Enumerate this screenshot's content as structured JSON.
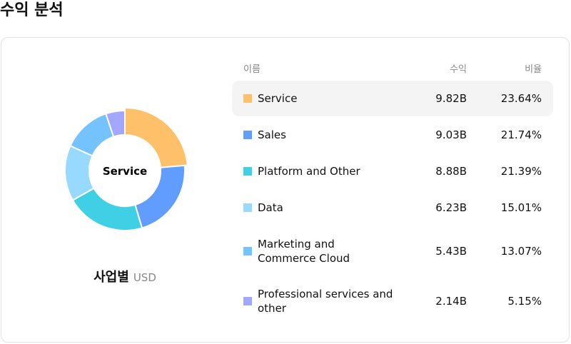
{
  "title": "수익 분석",
  "center_label": "Service",
  "segment": {
    "label": "사업별",
    "unit": "USD"
  },
  "headers": {
    "name": "이름",
    "revenue": "수익",
    "ratio": "비율"
  },
  "rows": [
    {
      "name": "Service",
      "revenue": "9.82B",
      "ratio": "23.64%",
      "color": "#FFC06A",
      "active": true
    },
    {
      "name": "Sales",
      "revenue": "9.03B",
      "ratio": "21.74%",
      "color": "#619CFF"
    },
    {
      "name": "Platform and Other",
      "revenue": "8.88B",
      "ratio": "21.39%",
      "color": "#40D0E6"
    },
    {
      "name": "Data",
      "revenue": "6.23B",
      "ratio": "15.01%",
      "color": "#98DAFF"
    },
    {
      "name": "Marketing and Commerce Cloud",
      "revenue": "5.43B",
      "ratio": "13.07%",
      "color": "#74C3FF"
    },
    {
      "name": "Professional services and other",
      "revenue": "2.14B",
      "ratio": "5.15%",
      "color": "#A3A7FF"
    }
  ],
  "chart_data": {
    "type": "pie",
    "categories": [
      "Service",
      "Sales",
      "Platform and Other",
      "Data",
      "Marketing and Commerce Cloud",
      "Professional services and other"
    ],
    "values": [
      23.64,
      21.74,
      21.39,
      15.01,
      13.07,
      5.15
    ],
    "highlighted": "Service"
  }
}
